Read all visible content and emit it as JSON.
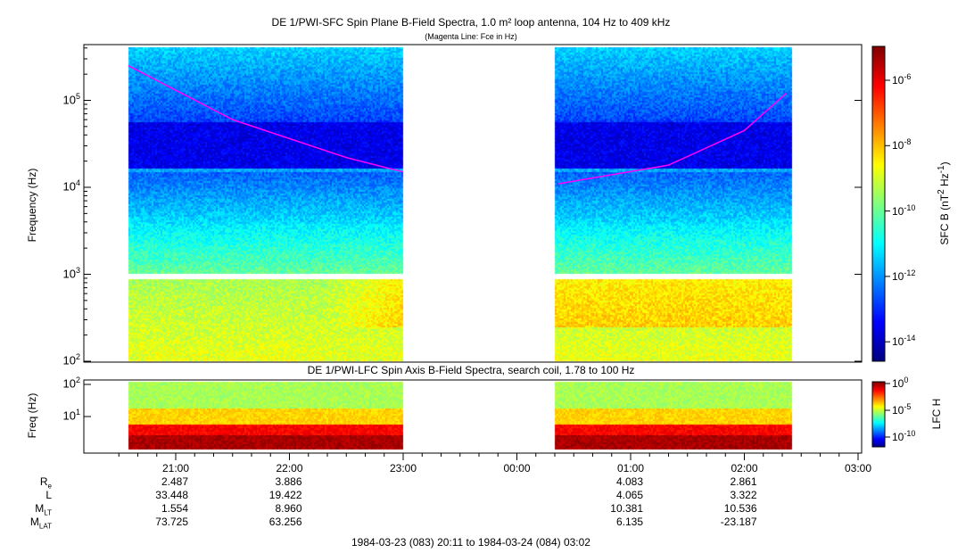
{
  "chart_data": [
    {
      "type": "heatmap",
      "title": "DE 1/PWI-SFC  Spin Plane B-Field Spectra, 1.0 m² loop antenna, 104 Hz to 409 kHz",
      "subtitle": "(Magenta Line: Fce in Hz)",
      "ylabel": "Frequency (Hz)",
      "yscale": "log",
      "ylim": [
        100,
        409000
      ],
      "yticks": [
        "10^2",
        "10^3",
        "10^4",
        "10^5"
      ],
      "colorbar": {
        "label": "SFC B (nT^2 Hz^-1)",
        "scale": "log",
        "range": [
          2.5e-15,
          1e-05
        ],
        "ticks": [
          "10^-6",
          "10^-8",
          "10^-10",
          "10^-12",
          "10^-14"
        ]
      },
      "data_intervals": [
        [
          "20:35",
          "23:00"
        ],
        [
          "00:20",
          "02:25"
        ]
      ],
      "fce_line": [
        {
          "time": "20:35",
          "hz": 250000
        },
        {
          "time": "21:30",
          "hz": 60000
        },
        {
          "time": "22:30",
          "hz": 22000
        },
        {
          "time": "23:00",
          "hz": 15000
        },
        {
          "time": "00:22",
          "hz": 11000
        },
        {
          "time": "01:20",
          "hz": 18000
        },
        {
          "time": "02:00",
          "hz": 45000
        },
        {
          "time": "02:22",
          "hz": 120000
        }
      ],
      "fce_color": "#ff00ff"
    },
    {
      "type": "heatmap",
      "title": "DE 1/PWI-LFC  Spin Axis B-Field Spectra, search coil, 1.78 to 100 Hz",
      "ylabel": "Freq (Hz)",
      "yscale": "log",
      "ylim": [
        1.78,
        100
      ],
      "yticks": [
        "10^2",
        "10^1"
      ],
      "colorbar": {
        "label": "LFC H",
        "scale": "log",
        "range": [
          1e-12,
          1
        ],
        "ticks": [
          "10^0",
          "10^-5",
          "10^-10"
        ]
      },
      "data_intervals": [
        [
          "20:35",
          "23:00"
        ],
        [
          "00:20",
          "02:25"
        ]
      ]
    }
  ],
  "xaxis": {
    "ticks": [
      "21:00",
      "22:00",
      "23:00",
      "00:00",
      "01:00",
      "02:00",
      "03:00"
    ],
    "range": "1984-03-23 (083) 20:11 to 1984-03-24 (084) 03:02"
  },
  "ephemeris": {
    "labels": [
      {
        "m": "R",
        "s": "e"
      },
      {
        "m": "L",
        "s": ""
      },
      {
        "m": "M",
        "s": "LT"
      },
      {
        "m": "M",
        "s": "LAT"
      }
    ],
    "columns": [
      {
        "tick": "21:00",
        "values": [
          "2.487",
          "33.448",
          "1.554",
          "73.725"
        ]
      },
      {
        "tick": "22:00",
        "values": [
          "3.886",
          "19.422",
          "8.960",
          "63.256"
        ]
      },
      {
        "tick": "01:00",
        "values": [
          "4.083",
          "4.065",
          "10.381",
          "6.135"
        ]
      },
      {
        "tick": "02:00",
        "values": [
          "2.861",
          "3.322",
          "10.536",
          "-23.187"
        ]
      }
    ]
  }
}
